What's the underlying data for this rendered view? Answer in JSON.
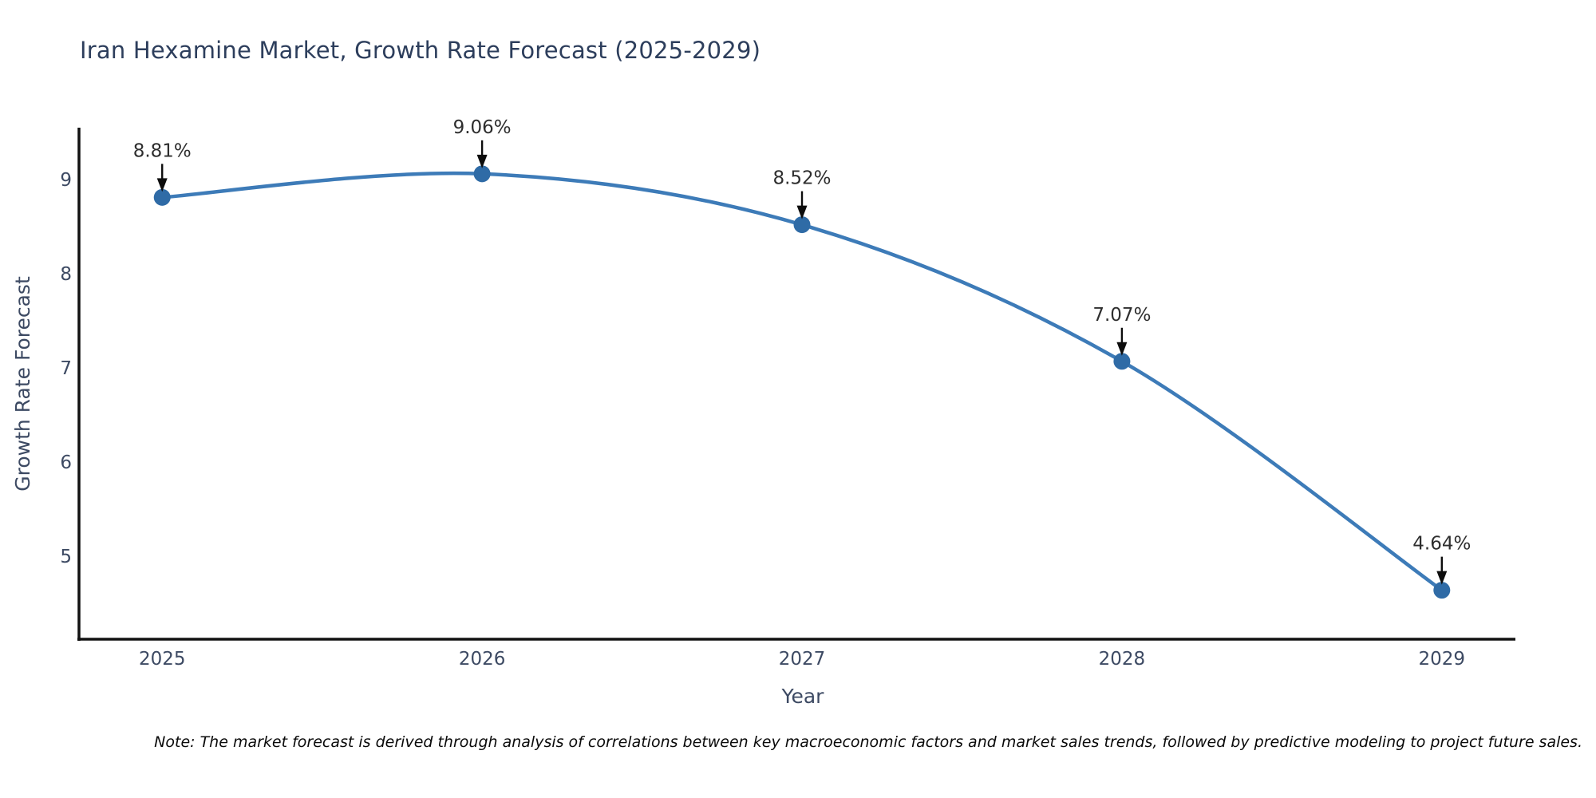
{
  "title": "Iran Hexamine Market, Growth Rate Forecast (2025-2029)",
  "note": "Note: The market forecast is derived through analysis of correlations between key macroeconomic factors and market sales trends, followed by predictive modeling to project future sales.",
  "chart_data": {
    "type": "line",
    "line_shape": "spline",
    "x": [
      2025,
      2026,
      2027,
      2028,
      2029
    ],
    "y": [
      8.81,
      9.06,
      8.52,
      7.07,
      4.64
    ],
    "series": [
      {
        "name": "Growth Rate Forecast",
        "values": [
          8.81,
          9.06,
          8.52,
          7.07,
          4.64
        ]
      }
    ],
    "point_labels": [
      "8.81%",
      "9.06%",
      "8.52%",
      "7.07%",
      "4.64%"
    ],
    "title": "Iran Hexamine Market, Growth Rate Forecast (2025-2029)",
    "xlabel": "Year",
    "ylabel": "Growth Rate Forecast",
    "x_tick_labels": [
      "2025",
      "2026",
      "2027",
      "2028",
      "2029"
    ],
    "x_tick_values": [
      2025,
      2026,
      2027,
      2028,
      2029
    ],
    "y_tick_values": [
      5,
      6,
      7,
      8,
      9
    ],
    "xlim": [
      2024.74,
      2029.23
    ],
    "ylim": [
      4.12,
      9.55
    ],
    "grid": false,
    "legend": "none",
    "colors": {
      "line": "#3d7bb8",
      "marker": "#2f6ba6",
      "axis_line": "#111111",
      "tick_text": "#3d4a63",
      "axis_title_text": "#3d4a63",
      "title_text": "#2d3e5c",
      "annotation_text": "#2e2e2e",
      "arrow": "#0d0d0d",
      "background": "#ffffff"
    }
  }
}
